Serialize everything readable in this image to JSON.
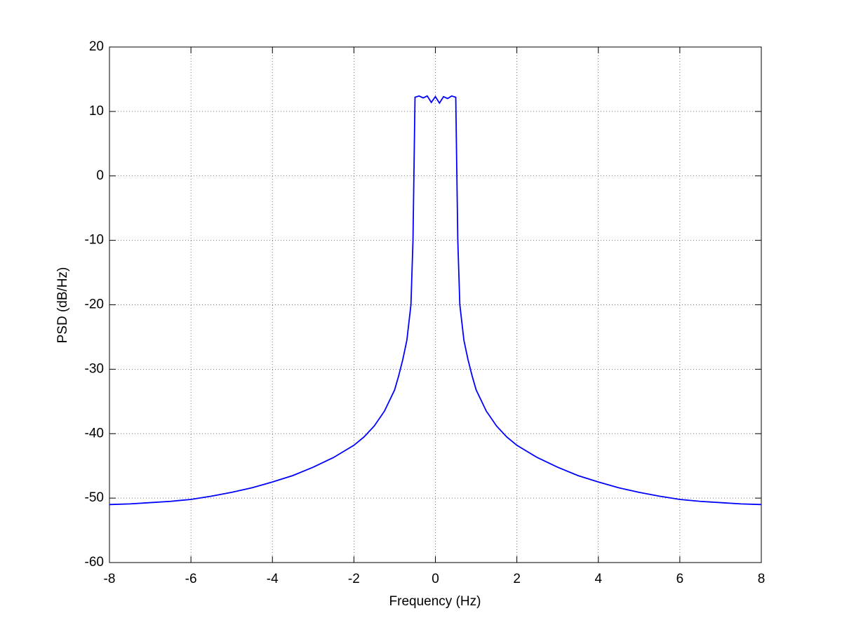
{
  "chart_data": {
    "type": "line",
    "x_label": "Frequency (Hz)",
    "y_label": "PSD (dB/Hz)",
    "x": [
      -8,
      -7.5,
      -7,
      -6.5,
      -6,
      -5.5,
      -5,
      -4.5,
      -4,
      -3.5,
      -3,
      -2.5,
      -2,
      -1.75,
      -1.5,
      -1.25,
      -1,
      -0.9,
      -0.8,
      -0.7,
      -0.6,
      -0.55,
      -0.5,
      -0.4,
      -0.3,
      -0.2,
      -0.1,
      0,
      0.1,
      0.2,
      0.3,
      0.4,
      0.5,
      0.55,
      0.6,
      0.7,
      0.8,
      0.9,
      1,
      1.25,
      1.5,
      1.75,
      2,
      2.5,
      3,
      3.5,
      4,
      4.5,
      5,
      5.5,
      6,
      6.5,
      7,
      7.5,
      8
    ],
    "series": [
      {
        "color": "#0000ff",
        "values": [
          -51,
          -50.9,
          -50.7,
          -50.5,
          -50.2,
          -49.7,
          -49.1,
          -48.4,
          -47.5,
          -46.5,
          -45.2,
          -43.7,
          -41.8,
          -40.5,
          -38.8,
          -36.5,
          -33.2,
          -31,
          -28.5,
          -25.5,
          -20,
          -10,
          12.2,
          12.4,
          12.1,
          12.4,
          11.4,
          12.3,
          11.3,
          12.3,
          12,
          12.4,
          12.2,
          -10,
          -20,
          -25.5,
          -28.5,
          -31,
          -33.2,
          -36.5,
          -38.8,
          -40.5,
          -41.8,
          -43.7,
          -45.2,
          -46.5,
          -47.5,
          -48.4,
          -49.1,
          -49.7,
          -50.2,
          -50.5,
          -50.7,
          -50.9,
          -51
        ]
      }
    ],
    "xlim": [
      -8,
      8
    ],
    "ylim": [
      -60,
      20
    ],
    "xticks": [
      -8,
      -6,
      -4,
      -2,
      0,
      2,
      4,
      6,
      8
    ],
    "yticks": [
      -60,
      -50,
      -40,
      -30,
      -20,
      -10,
      0,
      10,
      20
    ],
    "grid": true
  }
}
